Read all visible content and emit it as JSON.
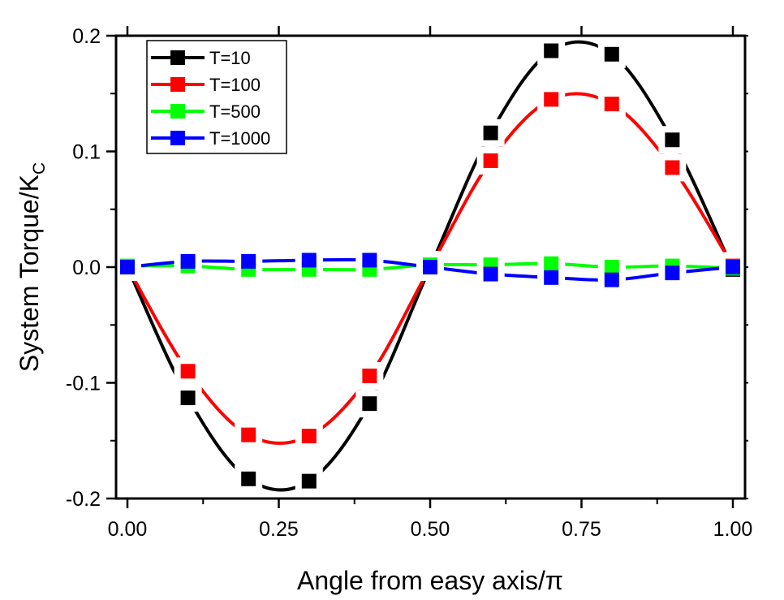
{
  "chart_data": {
    "type": "line",
    "title": "",
    "xlabel": "Angle from easy axis/π",
    "ylabel_main": "System Torque/K",
    "ylabel_sub": "C",
    "xlim": [
      -0.02,
      1.02
    ],
    "ylim": [
      -0.2,
      0.2
    ],
    "x_ticks": [
      0.0,
      0.25,
      0.5,
      0.75,
      1.0
    ],
    "x_tick_labels": [
      "0.00",
      "0.25",
      "0.50",
      "0.75",
      "1.00"
    ],
    "x_minor_ticks": [
      0.125,
      0.375,
      0.625,
      0.875
    ],
    "y_ticks": [
      -0.2,
      -0.1,
      0.0,
      0.1,
      0.2
    ],
    "y_tick_labels": [
      "-0.2",
      "-0.1",
      "0.0",
      "0.1",
      "0.2"
    ],
    "y_minor_ticks": [
      -0.15,
      -0.05,
      0.05,
      0.15
    ],
    "grid": false,
    "legend_position": "top-left",
    "x": [
      0.0,
      0.1,
      0.2,
      0.3,
      0.4,
      0.5,
      0.6,
      0.7,
      0.8,
      0.9,
      1.0
    ],
    "series": [
      {
        "name": "T=10",
        "color": "#000000",
        "marker": "square",
        "values": [
          0.0,
          -0.113,
          -0.183,
          -0.185,
          -0.118,
          0.0,
          0.116,
          0.187,
          0.184,
          0.11,
          -0.002
        ]
      },
      {
        "name": "T=100",
        "color": "#ff0000",
        "marker": "square",
        "values": [
          0.0,
          -0.09,
          -0.145,
          -0.146,
          -0.094,
          0.0,
          0.092,
          0.145,
          0.141,
          0.086,
          0.001
        ]
      },
      {
        "name": "T=500",
        "color": "#00ff00",
        "marker": "square",
        "values": [
          0.001,
          0.001,
          -0.002,
          -0.002,
          -0.002,
          0.002,
          0.002,
          0.003,
          0.0,
          0.001,
          -0.001
        ]
      },
      {
        "name": "T=1000",
        "color": "#0000ff",
        "marker": "square",
        "values": [
          0.0,
          0.005,
          0.005,
          0.006,
          0.006,
          0.0,
          -0.006,
          -0.009,
          -0.011,
          -0.005,
          0.0
        ]
      }
    ]
  }
}
